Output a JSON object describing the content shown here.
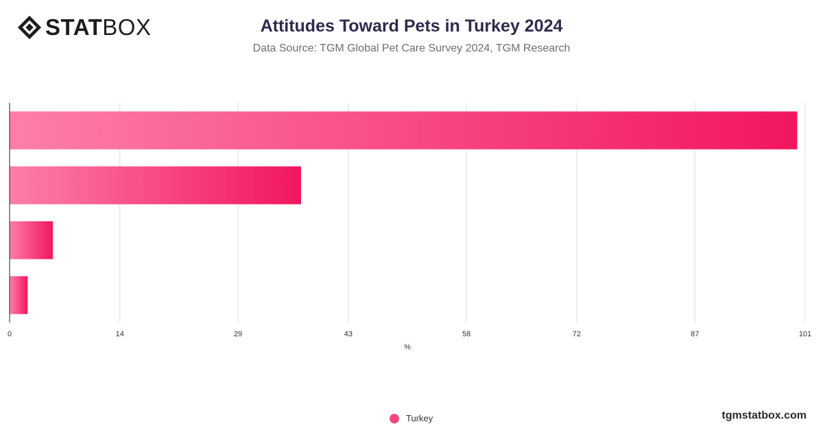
{
  "brand": {
    "logo_bold": "STAT",
    "logo_light": "BOX",
    "footer": "tgmstatbox.com"
  },
  "colors": {
    "bar_start": "#fd7fa9",
    "bar_end": "#f2165f",
    "legend": "#f3477f",
    "grid": "#dcdcdc",
    "axis": "#222222"
  },
  "chart_data": {
    "type": "bar",
    "orientation": "horizontal",
    "title": "Attitudes Toward Pets in Turkey 2024",
    "subtitle": "Data Source: TGM Global Pet Care Survey 2024, TGM Research",
    "xlabel": "%",
    "ylabel": "",
    "xlim": [
      0,
      101
    ],
    "x_ticks": [
      0,
      14,
      29,
      43,
      58,
      72,
      87,
      101
    ],
    "categories": [
      "",
      "",
      "",
      ""
    ],
    "series": [
      {
        "name": "Turkey",
        "values": [
          100,
          37,
          5.5,
          2.3
        ]
      }
    ],
    "grid": true,
    "legend_position": "bottom-center"
  }
}
